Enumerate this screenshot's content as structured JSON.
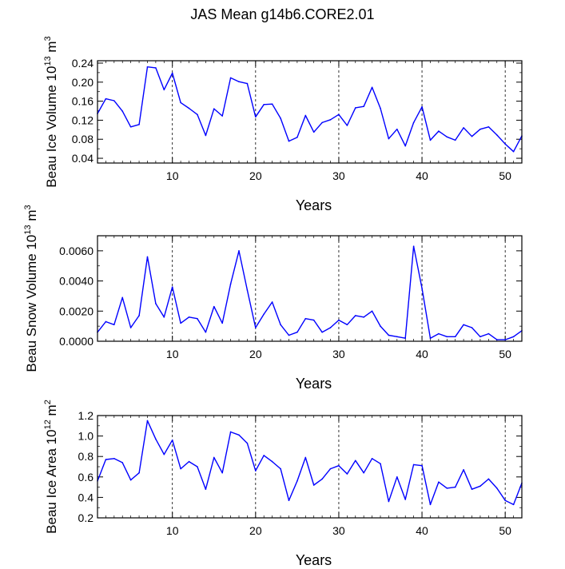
{
  "title": "JAS Mean g14b6.CORE2.01",
  "colors": {
    "line": "#0000ff",
    "axis": "#000000",
    "grid": "#000000"
  },
  "chart_data": [
    {
      "type": "line",
      "name": "ice-volume",
      "ylabel_main": "Beau Ice Volume 10",
      "ylabel_exp": "13",
      "ylabel_unit": " m",
      "ylabel_unit_exp": "3",
      "xlabel": "Years",
      "xlim": [
        1,
        52
      ],
      "ylim": [
        0.03,
        0.245
      ],
      "xticks": [
        10,
        20,
        30,
        40,
        50
      ],
      "xtick_labels": [
        "10",
        "20",
        "30",
        "40",
        "50"
      ],
      "yticks": [
        0.04,
        0.08,
        0.12,
        0.16,
        0.2,
        0.24
      ],
      "ytick_labels": [
        "0.04",
        "0.08",
        "0.12",
        "0.16",
        "0.20",
        "0.24"
      ],
      "vgrid": [
        10,
        20,
        30,
        40,
        50
      ],
      "x": [
        1,
        2,
        3,
        4,
        5,
        6,
        7,
        8,
        9,
        10,
        11,
        12,
        13,
        14,
        15,
        16,
        17,
        18,
        19,
        20,
        21,
        22,
        23,
        24,
        25,
        26,
        27,
        28,
        29,
        30,
        31,
        32,
        33,
        34,
        35,
        36,
        37,
        38,
        39,
        40,
        41,
        42,
        43,
        44,
        45,
        46,
        47,
        48,
        49,
        50,
        51,
        52
      ],
      "values": [
        0.134,
        0.165,
        0.161,
        0.139,
        0.106,
        0.111,
        0.232,
        0.23,
        0.184,
        0.219,
        0.157,
        0.145,
        0.132,
        0.088,
        0.144,
        0.129,
        0.209,
        0.201,
        0.197,
        0.127,
        0.153,
        0.154,
        0.124,
        0.076,
        0.084,
        0.13,
        0.095,
        0.115,
        0.121,
        0.132,
        0.109,
        0.146,
        0.149,
        0.189,
        0.145,
        0.081,
        0.101,
        0.066,
        0.115,
        0.148,
        0.078,
        0.097,
        0.085,
        0.078,
        0.104,
        0.086,
        0.101,
        0.106,
        0.089,
        0.07,
        0.054,
        0.087
      ]
    },
    {
      "type": "line",
      "name": "snow-volume",
      "ylabel_main": "Beau Snow Volume 10",
      "ylabel_exp": "13",
      "ylabel_unit": " m",
      "ylabel_unit_exp": "3",
      "xlabel": "Years",
      "xlim": [
        1,
        52
      ],
      "ylim": [
        0,
        0.007
      ],
      "xticks": [
        10,
        20,
        30,
        40,
        50
      ],
      "xtick_labels": [
        "10",
        "20",
        "30",
        "40",
        "50"
      ],
      "yticks": [
        0,
        0.002,
        0.004,
        0.006
      ],
      "ytick_labels": [
        "0.0000",
        "0.0020",
        "0.0040",
        "0.0060"
      ],
      "vgrid": [
        10,
        20,
        30,
        40,
        50
      ],
      "x": [
        1,
        2,
        3,
        4,
        5,
        6,
        7,
        8,
        9,
        10,
        11,
        12,
        13,
        14,
        15,
        16,
        17,
        18,
        19,
        20,
        21,
        22,
        23,
        24,
        25,
        26,
        27,
        28,
        29,
        30,
        31,
        32,
        33,
        34,
        35,
        36,
        37,
        38,
        39,
        40,
        41,
        42,
        43,
        44,
        45,
        46,
        47,
        48,
        49,
        50,
        51,
        52
      ],
      "values": [
        0.0006,
        0.0013,
        0.0011,
        0.0029,
        0.0009,
        0.0017,
        0.0056,
        0.0025,
        0.0016,
        0.0036,
        0.0012,
        0.0016,
        0.0015,
        0.0006,
        0.0023,
        0.0012,
        0.0038,
        0.006,
        0.0034,
        0.0009,
        0.0018,
        0.0026,
        0.0011,
        0.0004,
        0.0006,
        0.0015,
        0.0014,
        0.0006,
        0.0009,
        0.0014,
        0.0011,
        0.0017,
        0.0016,
        0.002,
        0.001,
        0.0004,
        0.0003,
        0.0002,
        0.0063,
        0.0035,
        0.0002,
        0.0005,
        0.0003,
        0.0003,
        0.0011,
        0.0009,
        0.0003,
        0.0005,
        0.0001,
        0.0001,
        0.0003,
        0.0007
      ]
    },
    {
      "type": "line",
      "name": "ice-area",
      "ylabel_main": "Beau Ice Area 10",
      "ylabel_exp": "12",
      "ylabel_unit": " m",
      "ylabel_unit_exp": "2",
      "xlabel": "Years",
      "xlim": [
        1,
        52
      ],
      "ylim": [
        0.2,
        1.2
      ],
      "xticks": [
        10,
        20,
        30,
        40,
        50
      ],
      "xtick_labels": [
        "10",
        "20",
        "30",
        "40",
        "50"
      ],
      "yticks": [
        0.2,
        0.4,
        0.6,
        0.8,
        1.0,
        1.2
      ],
      "ytick_labels": [
        "0.2",
        "0.4",
        "0.6",
        "0.8",
        "1.0",
        "1.2"
      ],
      "vgrid": [
        10,
        20,
        30,
        40,
        50
      ],
      "x": [
        1,
        2,
        3,
        4,
        5,
        6,
        7,
        8,
        9,
        10,
        11,
        12,
        13,
        14,
        15,
        16,
        17,
        18,
        19,
        20,
        21,
        22,
        23,
        24,
        25,
        26,
        27,
        28,
        29,
        30,
        31,
        32,
        33,
        34,
        35,
        36,
        37,
        38,
        39,
        40,
        41,
        42,
        43,
        44,
        45,
        46,
        47,
        48,
        49,
        50,
        51,
        52
      ],
      "values": [
        0.56,
        0.77,
        0.78,
        0.74,
        0.57,
        0.64,
        1.15,
        0.97,
        0.82,
        0.96,
        0.68,
        0.75,
        0.7,
        0.48,
        0.79,
        0.64,
        1.04,
        1.01,
        0.93,
        0.66,
        0.81,
        0.75,
        0.68,
        0.37,
        0.56,
        0.79,
        0.52,
        0.58,
        0.68,
        0.71,
        0.63,
        0.76,
        0.64,
        0.78,
        0.73,
        0.36,
        0.6,
        0.38,
        0.72,
        0.71,
        0.33,
        0.55,
        0.49,
        0.5,
        0.67,
        0.48,
        0.51,
        0.58,
        0.49,
        0.37,
        0.33,
        0.54
      ]
    }
  ]
}
